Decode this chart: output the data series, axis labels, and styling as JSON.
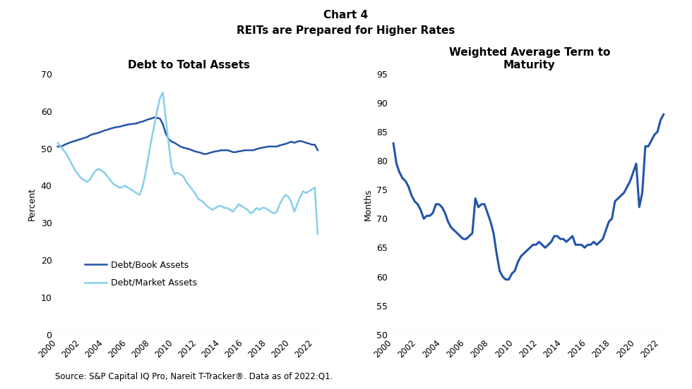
{
  "title_main": "Chart 4",
  "title_sub": "REITs are Prepared for Higher Rates",
  "left_title": "Debt to Total Assets",
  "right_title": "Weighted Average Term to\nMaturity",
  "left_ylabel": "Percent",
  "right_ylabel": "Months",
  "source": "Source: S&P Capital IQ Pro, Nareit T-Tracker®. Data as of 2022:Q1.",
  "left_ylim": [
    0,
    70
  ],
  "left_yticks": [
    0,
    10,
    20,
    30,
    40,
    50,
    60,
    70
  ],
  "right_ylim": [
    50,
    95
  ],
  "right_yticks": [
    50,
    55,
    60,
    65,
    70,
    75,
    80,
    85,
    90,
    95
  ],
  "legend_labels": [
    "Debt/Book Assets",
    "Debt/Market Assets"
  ],
  "dark_blue": "#2255aa",
  "light_blue": "#87ceeb",
  "book_assets_x": [
    2000.0,
    2000.25,
    2000.5,
    2000.75,
    2001.0,
    2001.25,
    2001.5,
    2001.75,
    2002.0,
    2002.25,
    2002.5,
    2002.75,
    2003.0,
    2003.25,
    2003.5,
    2003.75,
    2004.0,
    2004.25,
    2004.5,
    2004.75,
    2005.0,
    2005.25,
    2005.5,
    2005.75,
    2006.0,
    2006.25,
    2006.5,
    2006.75,
    2007.0,
    2007.25,
    2007.5,
    2007.75,
    2008.0,
    2008.25,
    2008.5,
    2008.75,
    2009.0,
    2009.25,
    2009.5,
    2009.75,
    2010.0,
    2010.25,
    2010.5,
    2010.75,
    2011.0,
    2011.25,
    2011.5,
    2011.75,
    2012.0,
    2012.25,
    2012.5,
    2012.75,
    2013.0,
    2013.25,
    2013.5,
    2013.75,
    2014.0,
    2014.25,
    2014.5,
    2014.75,
    2015.0,
    2015.25,
    2015.5,
    2015.75,
    2016.0,
    2016.25,
    2016.5,
    2016.75,
    2017.0,
    2017.25,
    2017.5,
    2017.75,
    2018.0,
    2018.25,
    2018.5,
    2018.75,
    2019.0,
    2019.25,
    2019.5,
    2019.75,
    2020.0,
    2020.25,
    2020.5,
    2020.75,
    2021.0,
    2021.25,
    2021.5,
    2021.75,
    2022.0,
    2022.25
  ],
  "book_assets_y": [
    50.5,
    50.5,
    50.8,
    51.2,
    51.5,
    51.8,
    52.0,
    52.3,
    52.5,
    52.8,
    53.0,
    53.5,
    53.8,
    54.0,
    54.2,
    54.5,
    54.8,
    55.0,
    55.3,
    55.5,
    55.7,
    55.8,
    56.0,
    56.2,
    56.4,
    56.5,
    56.6,
    56.7,
    57.0,
    57.2,
    57.5,
    57.8,
    58.0,
    58.3,
    58.2,
    58.0,
    56.5,
    54.0,
    52.5,
    51.8,
    51.5,
    51.0,
    50.5,
    50.2,
    50.0,
    49.8,
    49.5,
    49.2,
    49.0,
    48.8,
    48.5,
    48.5,
    48.8,
    49.0,
    49.2,
    49.3,
    49.5,
    49.5,
    49.5,
    49.3,
    49.0,
    49.0,
    49.2,
    49.3,
    49.5,
    49.5,
    49.5,
    49.5,
    49.8,
    50.0,
    50.2,
    50.3,
    50.5,
    50.5,
    50.5,
    50.5,
    50.8,
    51.0,
    51.2,
    51.5,
    51.8,
    51.5,
    51.8,
    52.0,
    51.8,
    51.5,
    51.3,
    51.0,
    51.0,
    49.5
  ],
  "market_assets_x": [
    2000.0,
    2000.25,
    2000.5,
    2000.75,
    2001.0,
    2001.25,
    2001.5,
    2001.75,
    2002.0,
    2002.25,
    2002.5,
    2002.75,
    2003.0,
    2003.25,
    2003.5,
    2003.75,
    2004.0,
    2004.25,
    2004.5,
    2004.75,
    2005.0,
    2005.25,
    2005.5,
    2005.75,
    2006.0,
    2006.25,
    2006.5,
    2006.75,
    2007.0,
    2007.25,
    2007.5,
    2007.75,
    2008.0,
    2008.25,
    2008.5,
    2008.75,
    2009.0,
    2009.25,
    2009.5,
    2009.75,
    2010.0,
    2010.25,
    2010.5,
    2010.75,
    2011.0,
    2011.25,
    2011.5,
    2011.75,
    2012.0,
    2012.25,
    2012.5,
    2012.75,
    2013.0,
    2013.25,
    2013.5,
    2013.75,
    2014.0,
    2014.25,
    2014.5,
    2014.75,
    2015.0,
    2015.25,
    2015.5,
    2015.75,
    2016.0,
    2016.25,
    2016.5,
    2016.75,
    2017.0,
    2017.25,
    2017.5,
    2017.75,
    2018.0,
    2018.25,
    2018.5,
    2018.75,
    2019.0,
    2019.25,
    2019.5,
    2019.75,
    2020.0,
    2020.25,
    2020.5,
    2020.75,
    2021.0,
    2021.25,
    2021.5,
    2021.75,
    2022.0,
    2022.25
  ],
  "market_assets_y": [
    51.5,
    50.5,
    49.5,
    48.5,
    47.0,
    45.5,
    44.0,
    43.0,
    42.0,
    41.5,
    41.0,
    41.5,
    43.0,
    44.0,
    44.5,
    44.0,
    43.5,
    42.5,
    41.5,
    40.5,
    40.0,
    39.5,
    39.5,
    40.0,
    39.5,
    39.0,
    38.5,
    38.0,
    37.5,
    39.5,
    43.0,
    47.5,
    52.0,
    56.0,
    60.0,
    63.5,
    65.0,
    58.0,
    51.0,
    45.0,
    43.0,
    43.5,
    43.0,
    42.5,
    41.0,
    40.0,
    39.0,
    38.0,
    36.5,
    36.0,
    35.5,
    34.5,
    34.0,
    33.5,
    34.0,
    34.5,
    34.5,
    34.0,
    34.0,
    33.5,
    33.0,
    34.0,
    35.0,
    34.5,
    34.0,
    33.5,
    32.5,
    33.0,
    34.0,
    33.5,
    34.0,
    34.0,
    33.5,
    33.0,
    32.5,
    33.0,
    35.0,
    36.5,
    37.5,
    37.0,
    35.5,
    33.0,
    35.0,
    37.0,
    38.5,
    38.0,
    38.5,
    39.0,
    39.5,
    27.0
  ],
  "maturity_x": [
    2000.0,
    2000.25,
    2000.5,
    2000.75,
    2001.0,
    2001.25,
    2001.5,
    2001.75,
    2002.0,
    2002.25,
    2002.5,
    2002.75,
    2003.0,
    2003.25,
    2003.5,
    2003.75,
    2004.0,
    2004.25,
    2004.5,
    2004.75,
    2005.0,
    2005.25,
    2005.5,
    2005.75,
    2006.0,
    2006.25,
    2006.5,
    2006.75,
    2007.0,
    2007.25,
    2007.5,
    2007.75,
    2008.0,
    2008.25,
    2008.5,
    2008.75,
    2009.0,
    2009.25,
    2009.5,
    2009.75,
    2010.0,
    2010.25,
    2010.5,
    2010.75,
    2011.0,
    2011.25,
    2011.5,
    2011.75,
    2012.0,
    2012.25,
    2012.5,
    2012.75,
    2013.0,
    2013.25,
    2013.5,
    2013.75,
    2014.0,
    2014.25,
    2014.5,
    2014.75,
    2015.0,
    2015.25,
    2015.5,
    2015.75,
    2016.0,
    2016.25,
    2016.5,
    2016.75,
    2017.0,
    2017.25,
    2017.5,
    2017.75,
    2018.0,
    2018.25,
    2018.5,
    2018.75,
    2019.0,
    2019.25,
    2019.5,
    2019.75,
    2020.0,
    2020.25,
    2020.5,
    2020.75,
    2021.0,
    2021.25,
    2021.5,
    2021.75,
    2022.0,
    2022.25
  ],
  "maturity_y": [
    83.0,
    79.5,
    78.0,
    77.0,
    76.5,
    75.5,
    74.0,
    73.0,
    72.5,
    71.5,
    70.0,
    70.5,
    70.5,
    71.0,
    72.5,
    72.5,
    72.0,
    71.0,
    69.5,
    68.5,
    68.0,
    67.5,
    67.0,
    66.5,
    66.5,
    67.0,
    67.5,
    73.5,
    72.0,
    72.5,
    72.5,
    71.0,
    69.5,
    67.5,
    64.0,
    61.0,
    60.0,
    59.5,
    59.5,
    60.5,
    61.0,
    62.5,
    63.5,
    64.0,
    64.5,
    65.0,
    65.5,
    65.5,
    66.0,
    65.5,
    65.0,
    65.5,
    66.0,
    67.0,
    67.0,
    66.5,
    66.5,
    66.0,
    66.5,
    67.0,
    65.5,
    65.5,
    65.5,
    65.0,
    65.5,
    65.5,
    66.0,
    65.5,
    66.0,
    66.5,
    68.0,
    69.5,
    70.0,
    73.0,
    73.5,
    74.0,
    74.5,
    75.5,
    76.5,
    78.0,
    79.5,
    72.0,
    74.5,
    82.5,
    82.5,
    83.5,
    84.5,
    85.0,
    87.0,
    88.0
  ]
}
